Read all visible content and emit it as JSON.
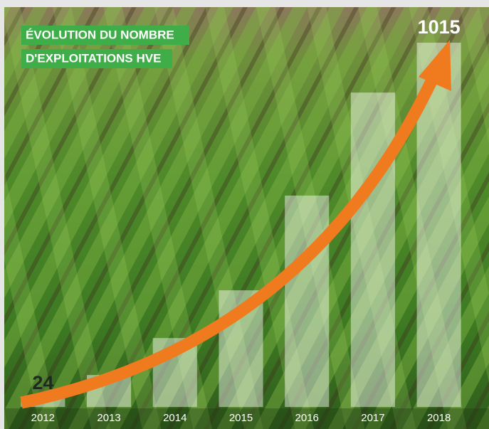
{
  "chart_data": {
    "type": "bar",
    "title": [
      "ÉVOLUTION DU NOMBRE",
      "D'EXPLOITATIONS HVE"
    ],
    "categories": [
      "2012",
      "2013",
      "2014",
      "2015",
      "2016",
      "2017",
      "2018"
    ],
    "values": [
      24,
      89,
      192,
      325,
      589,
      876,
      1015
    ],
    "value_labels": [
      "24",
      null,
      null,
      null,
      null,
      null,
      "1015"
    ],
    "color": "#ffffff",
    "ylim": [
      0,
      1015
    ],
    "grid": false
  }
}
